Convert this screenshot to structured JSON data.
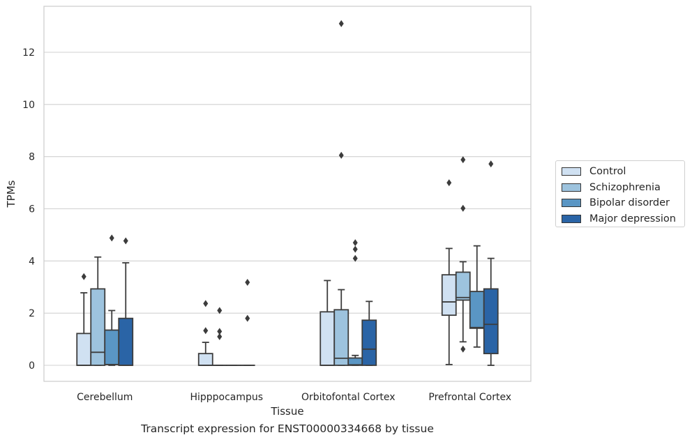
{
  "caption": "Transcript expression for ENST00000334668 by tissue",
  "chart_data": {
    "type": "box",
    "xlabel": "Tissue",
    "ylabel": "TPMs",
    "ylim": [
      -0.65,
      13.8
    ],
    "yticks": [
      0,
      2,
      4,
      6,
      8,
      10,
      12
    ],
    "grid": "horizontal",
    "legend_position": "right",
    "categories": [
      "Cerebellum",
      "Hipppocampus",
      "Orbitofontal Cortex",
      "Prefrontal Cortex"
    ],
    "series": [
      {
        "name": "Control",
        "color": "#d0e1f2",
        "boxes": [
          {
            "q1": 0,
            "median": 0,
            "q3": 1.22,
            "whisker_low": 0,
            "whisker_high": 2.78,
            "outliers": [
              3.4
            ]
          },
          {
            "q1": 0,
            "median": 0,
            "q3": 0.45,
            "whisker_low": 0,
            "whisker_high": 0.88,
            "outliers": [
              1.33,
              2.37
            ]
          },
          {
            "q1": 0,
            "median": 0,
            "q3": 2.05,
            "whisker_low": 0,
            "whisker_high": 3.25,
            "outliers": []
          },
          {
            "q1": 1.92,
            "median": 2.43,
            "q3": 3.47,
            "whisker_low": 0.03,
            "whisker_high": 4.48,
            "outliers": [
              7.0
            ]
          }
        ]
      },
      {
        "name": "Schizophrenia",
        "color": "#9dc3de",
        "boxes": [
          {
            "q1": 0,
            "median": 0.5,
            "q3": 2.93,
            "whisker_low": 0,
            "whisker_high": 4.15,
            "outliers": []
          },
          {
            "q1": 0,
            "median": 0,
            "q3": 0,
            "whisker_low": 0,
            "whisker_high": 0,
            "outliers": [
              1.1,
              1.3,
              2.1
            ]
          },
          {
            "q1": 0,
            "median": 0.27,
            "q3": 2.13,
            "whisker_low": 0,
            "whisker_high": 2.9,
            "outliers": [
              8.05,
              13.1
            ]
          },
          {
            "q1": 2.5,
            "median": 2.6,
            "q3": 3.57,
            "whisker_low": 0.9,
            "whisker_high": 3.97,
            "outliers": [
              0.62,
              6.02,
              7.88
            ]
          }
        ]
      },
      {
        "name": "Bipolar disorder",
        "color": "#5a96c4",
        "boxes": [
          {
            "q1": 0.03,
            "median": 0.03,
            "q3": 1.35,
            "whisker_low": 0,
            "whisker_high": 2.1,
            "outliers": [
              4.88
            ]
          },
          {
            "q1": 0,
            "median": 0,
            "q3": 0,
            "whisker_low": 0,
            "whisker_high": 0,
            "outliers": []
          },
          {
            "q1": 0,
            "median": 0.02,
            "q3": 0.28,
            "whisker_low": 0,
            "whisker_high": 0.38,
            "outliers": [
              4.1,
              4.45,
              4.7
            ]
          },
          {
            "q1": 1.42,
            "median": 1.45,
            "q3": 2.83,
            "whisker_low": 0.7,
            "whisker_high": 4.58,
            "outliers": []
          }
        ]
      },
      {
        "name": "Major depression",
        "color": "#2a64a6",
        "boxes": [
          {
            "q1": 0,
            "median": 0,
            "q3": 1.8,
            "whisker_low": 0,
            "whisker_high": 3.93,
            "outliers": [
              4.77
            ]
          },
          {
            "q1": 0,
            "median": 0,
            "q3": 0,
            "whisker_low": 0,
            "whisker_high": 0,
            "outliers": [
              1.8,
              3.18
            ]
          },
          {
            "q1": 0,
            "median": 0.62,
            "q3": 1.73,
            "whisker_low": 0,
            "whisker_high": 2.45,
            "outliers": []
          },
          {
            "q1": 0.45,
            "median": 1.57,
            "q3": 2.93,
            "whisker_low": 0,
            "whisker_high": 4.1,
            "outliers": [
              7.72
            ]
          }
        ]
      }
    ]
  }
}
